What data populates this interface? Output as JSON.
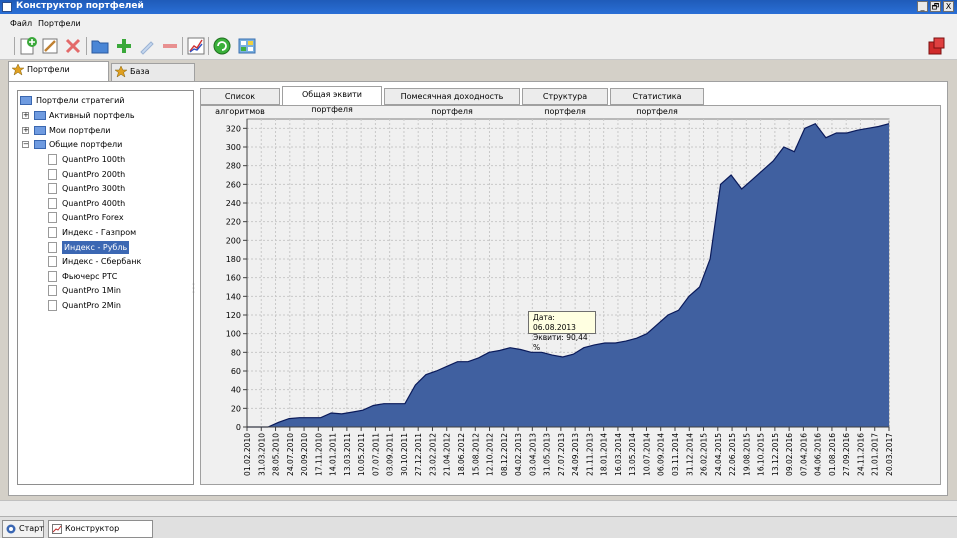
{
  "window": {
    "title": "Конструктор портфелей",
    "min": "_",
    "restore": "🗗",
    "close": "X"
  },
  "menu": [
    "Файл",
    "Портфели"
  ],
  "toolbar": {
    "buttons": [
      "new-portfolio",
      "edit",
      "delete",
      "open-folder",
      "add",
      "edit-pencil",
      "remove",
      "equity-chart",
      "refresh",
      "calculator"
    ],
    "exit_icon": "exit-icon"
  },
  "outer_tabs": [
    {
      "label": "Портфели стратегий",
      "active": true
    },
    {
      "label": "База алгоритмов",
      "active": false
    }
  ],
  "tree": {
    "root": "Портфели стратегий",
    "groups": [
      {
        "label": "Активный портфель",
        "expanded": false
      },
      {
        "label": "Мои портфели",
        "expanded": false
      },
      {
        "label": "Общие портфели",
        "expanded": true
      }
    ],
    "items": [
      "QuantPro 100th",
      "QuantPro 200th",
      "QuantPro 300th",
      "QuantPro 400th",
      "QuantPro Forex",
      "Индекс - Газпром",
      "Индекс - Рубль",
      "Индекс - Сбербанк",
      "Фьючерс РТС",
      "QuantPro 1Min",
      "QuantPro 2Min"
    ],
    "selected": "Индекс - Рубль"
  },
  "inner_tabs": [
    {
      "label": "Список алгоритмов",
      "active": false
    },
    {
      "label": "Общая эквити портфеля",
      "active": true
    },
    {
      "label": "Помесячная доходность портфеля",
      "active": false
    },
    {
      "label": "Структура портфеля",
      "active": false
    },
    {
      "label": "Статистика портфеля",
      "active": false
    }
  ],
  "tooltip": {
    "date_line": "Дата: 06.08.2013",
    "equity_line": "Эквити: 90,44 %"
  },
  "chart_data": {
    "type": "area",
    "title": "",
    "xlabel": "",
    "ylabel": "",
    "ylim": [
      0,
      330
    ],
    "y_ticks": [
      0,
      20,
      40,
      60,
      80,
      100,
      120,
      140,
      160,
      180,
      200,
      220,
      240,
      260,
      280,
      300,
      320
    ],
    "grid": true,
    "fill_color": "#4060a0",
    "line_color": "#0a1a5a",
    "x_tick_labels": [
      "01.02.2010",
      "31.03.2010",
      "28.05.2010",
      "24.07.2010",
      "20.09.2010",
      "17.11.2010",
      "14.01.2011",
      "13.03.2011",
      "10.05.2011",
      "07.07.2011",
      "03.09.2011",
      "30.10.2011",
      "27.12.2011",
      "23.02.2012",
      "21.04.2012",
      "18.06.2012",
      "15.08.2012",
      "12.10.2012",
      "08.12.2012",
      "04.02.2013",
      "03.04.2013",
      "31.05.2013",
      "27.07.2013",
      "24.09.2013",
      "21.11.2013",
      "18.01.2014",
      "16.03.2014",
      "13.05.2014",
      "10.07.2014",
      "06.09.2014",
      "03.11.2014",
      "31.12.2014",
      "26.02.2015",
      "24.04.2015",
      "22.06.2015",
      "19.08.2015",
      "16.10.2015",
      "13.12.2015",
      "09.02.2016",
      "07.04.2016",
      "04.06.2016",
      "01.08.2016",
      "27.09.2016",
      "24.11.2016",
      "21.01.2017",
      "20.03.2017"
    ],
    "values": [
      0,
      0,
      0,
      5,
      9,
      10,
      10,
      10,
      15,
      14,
      16,
      18,
      23,
      25,
      25,
      25,
      45,
      56,
      60,
      65,
      70,
      70,
      74,
      80,
      82,
      85,
      83,
      80,
      80,
      77,
      75,
      78,
      85,
      88,
      90,
      90,
      92,
      95,
      100,
      110,
      120,
      125,
      140,
      150,
      180,
      260,
      270,
      255,
      265,
      275,
      285,
      300,
      295,
      320,
      325,
      310,
      315,
      315,
      318,
      320,
      322,
      325
    ]
  },
  "taskbar": {
    "start": "Старт",
    "window_task": "Конструктор портфелей"
  }
}
